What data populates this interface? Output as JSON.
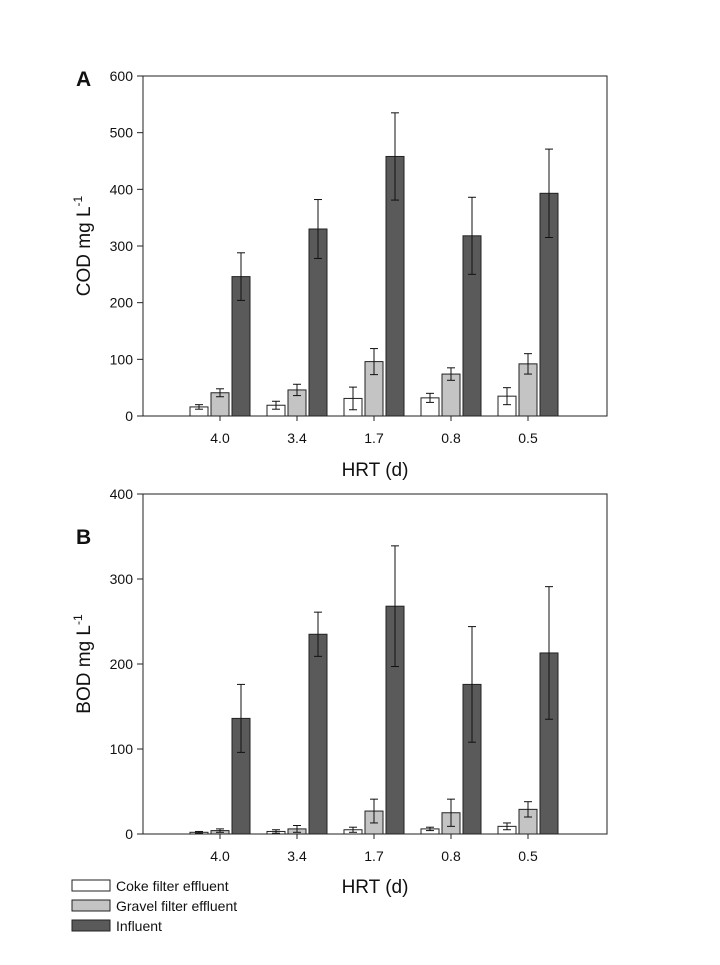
{
  "chart_data": [
    {
      "panel": "A",
      "type": "bar",
      "ylabel": "COD mg L",
      "ylabel_superscript": "-1",
      "xlabel": "HRT (d)",
      "ylim": [
        0,
        600
      ],
      "yticks": [
        0,
        100,
        200,
        300,
        400,
        500,
        600
      ],
      "categories": [
        "4.0",
        "3.4",
        "1.7",
        "0.8",
        "0.5"
      ],
      "series": [
        {
          "name": "Coke filter effluent",
          "values": [
            16,
            19,
            31,
            32,
            35
          ],
          "errors": [
            4,
            7,
            20,
            8,
            15
          ]
        },
        {
          "name": "Gravel filter effluent",
          "values": [
            41,
            46,
            96,
            74,
            92
          ],
          "errors": [
            7,
            10,
            23,
            11,
            18
          ]
        },
        {
          "name": "Influent",
          "values": [
            246,
            330,
            458,
            318,
            393
          ],
          "errors": [
            42,
            52,
            77,
            68,
            78
          ]
        }
      ]
    },
    {
      "panel": "B",
      "type": "bar",
      "ylabel": "BOD mg L",
      "ylabel_superscript": "-1",
      "xlabel": "HRT (d)",
      "ylim": [
        0,
        400
      ],
      "yticks": [
        0,
        100,
        200,
        300,
        400
      ],
      "categories": [
        "4.0",
        "3.4",
        "1.7",
        "0.8",
        "0.5"
      ],
      "series": [
        {
          "name": "Coke filter effluent",
          "values": [
            2,
            3,
            5,
            6,
            9
          ],
          "errors": [
            1,
            2,
            3,
            2,
            4
          ]
        },
        {
          "name": "Gravel filter effluent",
          "values": [
            4,
            6,
            27,
            25,
            29
          ],
          "errors": [
            2,
            4,
            14,
            16,
            9
          ]
        },
        {
          "name": "Influent",
          "values": [
            136,
            235,
            268,
            176,
            213
          ],
          "errors": [
            40,
            26,
            71,
            68,
            78
          ]
        }
      ]
    }
  ],
  "legend": [
    {
      "label": "Coke filter effluent",
      "color": "#ffffff"
    },
    {
      "label": "Gravel filter effluent",
      "color": "#c4c4c4"
    },
    {
      "label": "Influent",
      "color": "#5a5a5a"
    }
  ]
}
